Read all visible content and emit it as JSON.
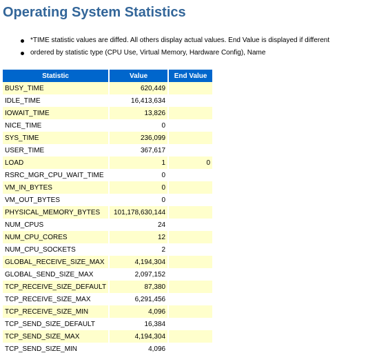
{
  "page": {
    "title": "Operating System Statistics",
    "notes": [
      "*TIME statistic values are diffed. All others display actual values. End Value is displayed if different",
      "ordered by statistic type (CPU Use, Virtual Memory, Hardware Config), Name"
    ]
  },
  "table": {
    "headers": [
      "Statistic",
      "Value",
      "End Value"
    ],
    "rows": [
      {
        "statistic": "BUSY_TIME",
        "value": "620,449",
        "end_value": ""
      },
      {
        "statistic": "IDLE_TIME",
        "value": "16,413,634",
        "end_value": ""
      },
      {
        "statistic": "IOWAIT_TIME",
        "value": "13,826",
        "end_value": ""
      },
      {
        "statistic": "NICE_TIME",
        "value": "0",
        "end_value": ""
      },
      {
        "statistic": "SYS_TIME",
        "value": "236,099",
        "end_value": ""
      },
      {
        "statistic": "USER_TIME",
        "value": "367,617",
        "end_value": ""
      },
      {
        "statistic": "LOAD",
        "value": "1",
        "end_value": "0"
      },
      {
        "statistic": "RSRC_MGR_CPU_WAIT_TIME",
        "value": "0",
        "end_value": ""
      },
      {
        "statistic": "VM_IN_BYTES",
        "value": "0",
        "end_value": ""
      },
      {
        "statistic": "VM_OUT_BYTES",
        "value": "0",
        "end_value": ""
      },
      {
        "statistic": "PHYSICAL_MEMORY_BYTES",
        "value": "101,178,630,144",
        "end_value": ""
      },
      {
        "statistic": "NUM_CPUS",
        "value": "24",
        "end_value": ""
      },
      {
        "statistic": "NUM_CPU_CORES",
        "value": "12",
        "end_value": ""
      },
      {
        "statistic": "NUM_CPU_SOCKETS",
        "value": "2",
        "end_value": ""
      },
      {
        "statistic": "GLOBAL_RECEIVE_SIZE_MAX",
        "value": "4,194,304",
        "end_value": ""
      },
      {
        "statistic": "GLOBAL_SEND_SIZE_MAX",
        "value": "2,097,152",
        "end_value": ""
      },
      {
        "statistic": "TCP_RECEIVE_SIZE_DEFAULT",
        "value": "87,380",
        "end_value": ""
      },
      {
        "statistic": "TCP_RECEIVE_SIZE_MAX",
        "value": "6,291,456",
        "end_value": ""
      },
      {
        "statistic": "TCP_RECEIVE_SIZE_MIN",
        "value": "4,096",
        "end_value": ""
      },
      {
        "statistic": "TCP_SEND_SIZE_DEFAULT",
        "value": "16,384",
        "end_value": ""
      },
      {
        "statistic": "TCP_SEND_SIZE_MAX",
        "value": "4,194,304",
        "end_value": ""
      },
      {
        "statistic": "TCP_SEND_SIZE_MIN",
        "value": "4,096",
        "end_value": ""
      }
    ]
  },
  "colors": {
    "title": "#336699",
    "header_background": "#0066cc",
    "header_text": "#ffffff",
    "row_highlight": "#ffffcc",
    "row_plain": "#ffffff"
  }
}
